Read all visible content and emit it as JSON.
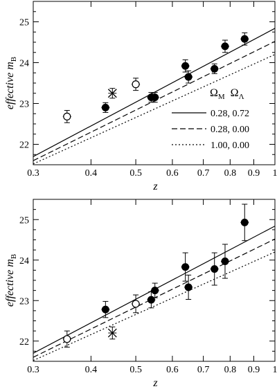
{
  "chart_data": [
    {
      "type": "scatter",
      "title": "",
      "xlabel": "z",
      "ylabel": "effective m",
      "ylabel_subscript": "B",
      "x_scale": "log",
      "xlim": [
        0.3,
        1.0
      ],
      "ylim": [
        21.5,
        25.5
      ],
      "x_ticks": [
        0.3,
        0.4,
        0.5,
        0.6,
        0.7,
        0.8,
        0.9,
        1
      ],
      "x_tick_labels": [
        "0.3",
        "0.4",
        "0.5",
        "0.6",
        "0.7",
        "0.8",
        "0.9",
        "1"
      ],
      "y_ticks": [
        22,
        23,
        24,
        25
      ],
      "y_tick_labels": [
        "22",
        "23",
        "24",
        "25"
      ],
      "grid": false,
      "legend": {
        "placement": "lower-right",
        "header_symbol": "Ω",
        "header_sub_1": "M",
        "header_sub_2": "Λ",
        "entries": [
          {
            "label": "0.28, 0.72",
            "style": "solid"
          },
          {
            "label": "0.28, 0.00",
            "style": "dashed"
          },
          {
            "label": "1.00, 0.00",
            "style": "dotted"
          }
        ]
      },
      "model_lines": [
        {
          "style": "solid",
          "x": [
            0.3,
            1.0
          ],
          "y": [
            21.7,
            24.84
          ]
        },
        {
          "style": "dashed",
          "x": [
            0.3,
            1.0
          ],
          "y": [
            21.6,
            24.52
          ]
        },
        {
          "style": "dotted",
          "x": [
            0.3,
            1.0
          ],
          "y": [
            21.52,
            24.2
          ]
        }
      ],
      "series": [
        {
          "marker": "filled-circle",
          "points": [
            {
              "x": 0.43,
              "y": 22.9,
              "err": 0.12
            },
            {
              "x": 0.54,
              "y": 23.15,
              "err": 0.12
            },
            {
              "x": 0.55,
              "y": 23.15,
              "err": 0.12
            },
            {
              "x": 0.64,
              "y": 23.92,
              "err": 0.15
            },
            {
              "x": 0.65,
              "y": 23.65,
              "err": 0.15
            },
            {
              "x": 0.74,
              "y": 23.85,
              "err": 0.12
            },
            {
              "x": 0.78,
              "y": 24.4,
              "err": 0.15
            },
            {
              "x": 0.86,
              "y": 24.58,
              "err": 0.15
            }
          ]
        },
        {
          "marker": "open-circle",
          "points": [
            {
              "x": 0.355,
              "y": 22.68,
              "err": 0.15
            },
            {
              "x": 0.5,
              "y": 23.47,
              "err": 0.15
            }
          ]
        },
        {
          "marker": "cross",
          "points": [
            {
              "x": 0.445,
              "y": 23.25,
              "err": 0.12
            }
          ]
        }
      ]
    },
    {
      "type": "scatter",
      "title": "",
      "xlabel": "z",
      "ylabel": "effective m",
      "ylabel_subscript": "B",
      "x_scale": "log",
      "xlim": [
        0.3,
        1.0
      ],
      "ylim": [
        21.5,
        25.5
      ],
      "x_ticks": [
        0.3,
        0.4,
        0.5,
        0.6,
        0.7,
        0.8,
        0.9,
        1
      ],
      "x_tick_labels": [
        "0.3",
        "0.4",
        "0.5",
        "0.6",
        "0.7",
        "0.8",
        "0.9",
        "1"
      ],
      "y_ticks": [
        22,
        23,
        24,
        25
      ],
      "y_tick_labels": [
        "22",
        "23",
        "24",
        "25"
      ],
      "grid": false,
      "model_lines": [
        {
          "style": "solid",
          "x": [
            0.3,
            1.0
          ],
          "y": [
            21.7,
            24.84
          ]
        },
        {
          "style": "dashed",
          "x": [
            0.3,
            1.0
          ],
          "y": [
            21.6,
            24.52
          ]
        },
        {
          "style": "dotted",
          "x": [
            0.3,
            1.0
          ],
          "y": [
            21.52,
            24.2
          ]
        }
      ],
      "series": [
        {
          "marker": "filled-circle",
          "points": [
            {
              "x": 0.43,
              "y": 22.78,
              "err": 0.2
            },
            {
              "x": 0.54,
              "y": 23.02,
              "err": 0.2
            },
            {
              "x": 0.55,
              "y": 23.25,
              "err": 0.18
            },
            {
              "x": 0.64,
              "y": 23.83,
              "err": 0.35
            },
            {
              "x": 0.65,
              "y": 23.33,
              "err": 0.3
            },
            {
              "x": 0.74,
              "y": 23.78,
              "err": 0.4
            },
            {
              "x": 0.78,
              "y": 23.97,
              "err": 0.42
            },
            {
              "x": 0.86,
              "y": 24.93,
              "err": 0.45
            }
          ]
        },
        {
          "marker": "open-circle",
          "points": [
            {
              "x": 0.355,
              "y": 22.05,
              "err": 0.2
            },
            {
              "x": 0.5,
              "y": 22.92,
              "err": 0.22
            }
          ]
        },
        {
          "marker": "cross",
          "points": [
            {
              "x": 0.445,
              "y": 22.2,
              "err": 0.15
            }
          ]
        }
      ]
    }
  ]
}
